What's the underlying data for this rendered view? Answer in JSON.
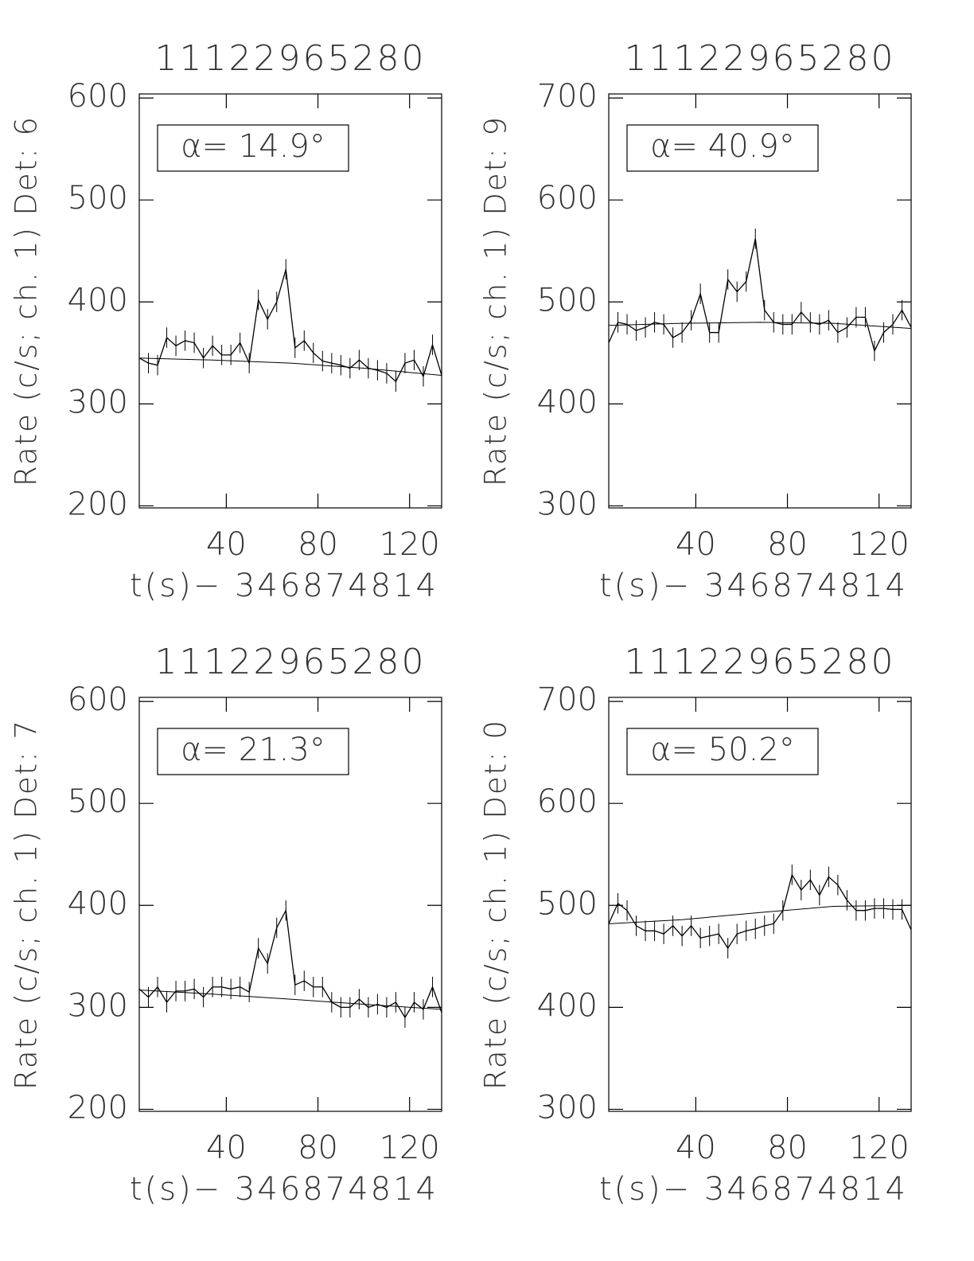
{
  "chart_data": [
    {
      "type": "line",
      "title": "11122965280",
      "y_label": "Rate (c/s; ch. 1) Det: 6",
      "x_label": "t(s)− 346874814",
      "annotation": "α= 14.9°",
      "color": "#000000",
      "x": [
        2,
        6,
        10,
        14,
        18,
        22,
        26,
        30,
        34,
        38,
        42,
        46,
        50,
        54,
        58,
        62,
        66,
        70,
        74,
        78,
        82,
        86,
        90,
        94,
        98,
        102,
        106,
        110,
        114,
        118,
        122,
        126,
        130,
        134
      ],
      "values": [
        345,
        340,
        338,
        365,
        357,
        362,
        360,
        345,
        357,
        348,
        348,
        360,
        340,
        402,
        383,
        400,
        432,
        355,
        362,
        350,
        342,
        340,
        338,
        335,
        343,
        335,
        333,
        330,
        322,
        340,
        343,
        327,
        358,
        328
      ],
      "errors": [
        10,
        10,
        10,
        10,
        10,
        10,
        10,
        10,
        10,
        10,
        10,
        10,
        10,
        10,
        10,
        10,
        10,
        10,
        10,
        10,
        10,
        10,
        10,
        10,
        10,
        10,
        10,
        10,
        10,
        10,
        10,
        10,
        10,
        10
      ],
      "fit_x": [
        2,
        34,
        68,
        100,
        134
      ],
      "fit": [
        345,
        343,
        340,
        335,
        328
      ],
      "xlim": [
        2,
        134
      ],
      "xticks": [
        40,
        80,
        120
      ],
      "ylim": [
        198,
        604
      ],
      "yticks": [
        200,
        300,
        400,
        500,
        600
      ]
    },
    {
      "type": "line",
      "title": "11122965280",
      "y_label": "Rate (c/s; ch. 1) Det: 9",
      "x_label": "t(s)− 346874814",
      "annotation": "α= 40.9°",
      "color": "#000000",
      "x": [
        2,
        6,
        10,
        14,
        18,
        22,
        26,
        30,
        34,
        38,
        42,
        46,
        50,
        54,
        58,
        62,
        66,
        70,
        74,
        78,
        82,
        86,
        90,
        94,
        98,
        102,
        106,
        110,
        114,
        118,
        122,
        126,
        130,
        134
      ],
      "values": [
        460,
        480,
        478,
        472,
        475,
        480,
        478,
        465,
        470,
        482,
        508,
        470,
        470,
        522,
        510,
        520,
        562,
        492,
        480,
        478,
        478,
        490,
        480,
        478,
        482,
        470,
        475,
        485,
        485,
        452,
        470,
        478,
        492,
        475
      ],
      "errors": [
        10,
        10,
        10,
        10,
        10,
        10,
        10,
        10,
        10,
        10,
        10,
        10,
        10,
        10,
        10,
        10,
        10,
        10,
        10,
        10,
        10,
        10,
        10,
        10,
        10,
        10,
        10,
        10,
        10,
        10,
        10,
        10,
        10,
        10
      ],
      "fit_x": [
        2,
        34,
        68,
        100,
        134
      ],
      "fit": [
        477,
        479,
        480,
        479,
        474
      ],
      "xlim": [
        2,
        134
      ],
      "xticks": [
        40,
        80,
        120
      ],
      "ylim": [
        298,
        704
      ],
      "yticks": [
        300,
        400,
        500,
        600,
        700
      ]
    },
    {
      "type": "line",
      "title": "11122965280",
      "y_label": "Rate (c/s; ch. 1) Det: 7",
      "x_label": "t(s)− 346874814",
      "annotation": "α= 21.3°",
      "color": "#000000",
      "x": [
        2,
        6,
        10,
        14,
        18,
        22,
        26,
        30,
        34,
        38,
        42,
        46,
        50,
        54,
        58,
        62,
        66,
        70,
        74,
        78,
        82,
        86,
        90,
        94,
        98,
        102,
        106,
        110,
        114,
        118,
        122,
        126,
        130,
        134
      ],
      "values": [
        318,
        310,
        320,
        305,
        316,
        316,
        318,
        310,
        320,
        320,
        318,
        320,
        315,
        358,
        343,
        378,
        395,
        322,
        326,
        320,
        320,
        305,
        300,
        300,
        308,
        300,
        303,
        300,
        305,
        290,
        305,
        298,
        320,
        295
      ],
      "errors": [
        10,
        10,
        10,
        10,
        10,
        10,
        10,
        10,
        10,
        10,
        10,
        10,
        10,
        10,
        10,
        10,
        10,
        10,
        10,
        10,
        10,
        10,
        10,
        10,
        10,
        10,
        10,
        10,
        10,
        10,
        10,
        10,
        10,
        10
      ],
      "fit_x": [
        2,
        34,
        68,
        100,
        134
      ],
      "fit": [
        317,
        313,
        308,
        303,
        298
      ],
      "xlim": [
        2,
        134
      ],
      "xticks": [
        40,
        80,
        120
      ],
      "ylim": [
        198,
        604
      ],
      "yticks": [
        200,
        300,
        400,
        500,
        600
      ]
    },
    {
      "type": "line",
      "title": "11122965280",
      "y_label": "Rate (c/s; ch. 1) Det: 0",
      "x_label": "t(s)− 346874814",
      "annotation": "α= 50.2°",
      "color": "#000000",
      "x": [
        2,
        6,
        10,
        14,
        18,
        22,
        26,
        30,
        34,
        38,
        42,
        46,
        50,
        54,
        58,
        62,
        66,
        70,
        74,
        78,
        82,
        86,
        90,
        94,
        98,
        102,
        106,
        110,
        114,
        118,
        122,
        126,
        130,
        134
      ],
      "values": [
        482,
        502,
        495,
        480,
        475,
        475,
        472,
        480,
        470,
        480,
        468,
        470,
        472,
        458,
        472,
        475,
        477,
        480,
        482,
        495,
        530,
        515,
        525,
        510,
        528,
        520,
        505,
        495,
        495,
        497,
        497,
        496,
        496,
        476
      ],
      "errors": [
        10,
        10,
        10,
        10,
        10,
        10,
        10,
        10,
        10,
        10,
        10,
        10,
        10,
        10,
        10,
        10,
        10,
        10,
        10,
        10,
        10,
        10,
        10,
        10,
        10,
        10,
        10,
        10,
        10,
        10,
        10,
        10,
        10,
        10
      ],
      "fit_x": [
        2,
        34,
        68,
        100,
        134
      ],
      "fit": [
        482,
        486,
        493,
        499,
        500
      ],
      "xlim": [
        2,
        134
      ],
      "xticks": [
        40,
        80,
        120
      ],
      "ylim": [
        298,
        704
      ],
      "yticks": [
        300,
        400,
        500,
        600,
        700
      ]
    }
  ]
}
